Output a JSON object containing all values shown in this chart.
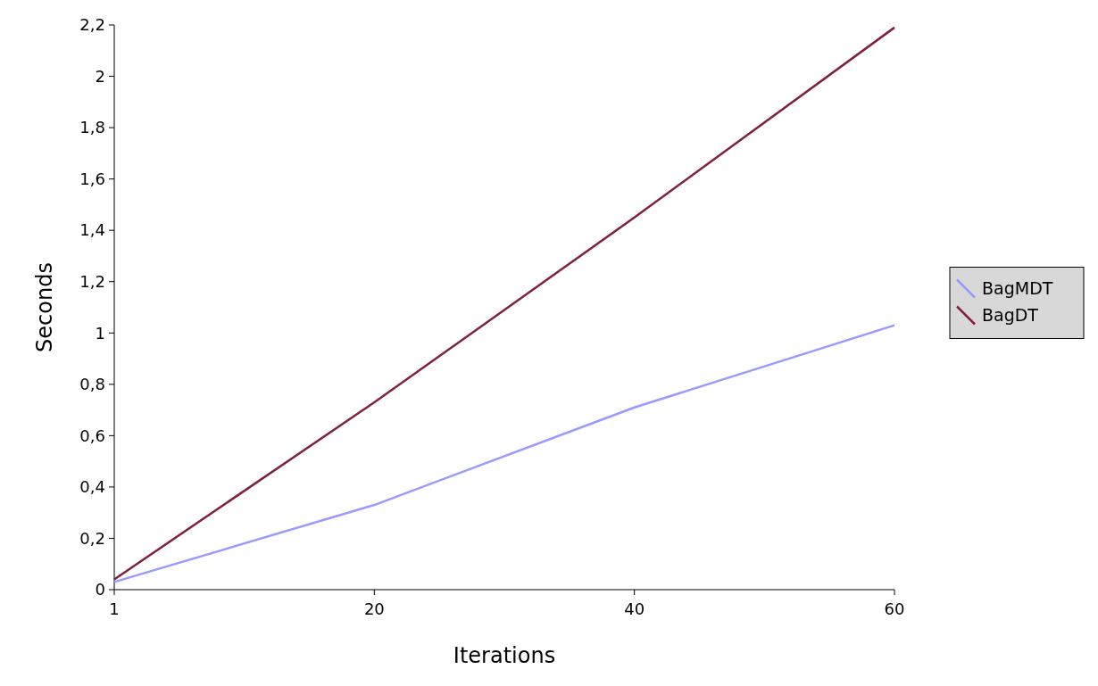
{
  "chart_data": {
    "type": "line",
    "xlabel": "Iterations",
    "ylabel": "Seconds",
    "categories": [
      "1",
      "20",
      "40",
      "60"
    ],
    "series": [
      {
        "name": "BagMDT",
        "color": "#9999ff",
        "values": [
          0.03,
          0.33,
          0.71,
          1.03
        ]
      },
      {
        "name": "BagDT",
        "color": "#802040",
        "values": [
          0.04,
          0.73,
          1.45,
          2.19
        ]
      }
    ],
    "ylim": [
      0,
      2.2
    ],
    "yticks": [
      0,
      {
        "value": 0.2,
        "label": "0,2"
      },
      {
        "value": 0.4,
        "label": "0,4"
      },
      {
        "value": 0.6,
        "label": "0,6"
      },
      {
        "value": 0.8,
        "label": "0,8"
      },
      1,
      {
        "value": 1.2,
        "label": "1,2"
      },
      {
        "value": 1.4,
        "label": "1,4"
      },
      {
        "value": 1.6,
        "label": "1,6"
      },
      {
        "value": 1.8,
        "label": "1,8"
      },
      2,
      {
        "value": 2.2,
        "label": "2,2"
      }
    ],
    "legend": "right",
    "marker": "none",
    "line_style": "solid",
    "grid": false
  }
}
